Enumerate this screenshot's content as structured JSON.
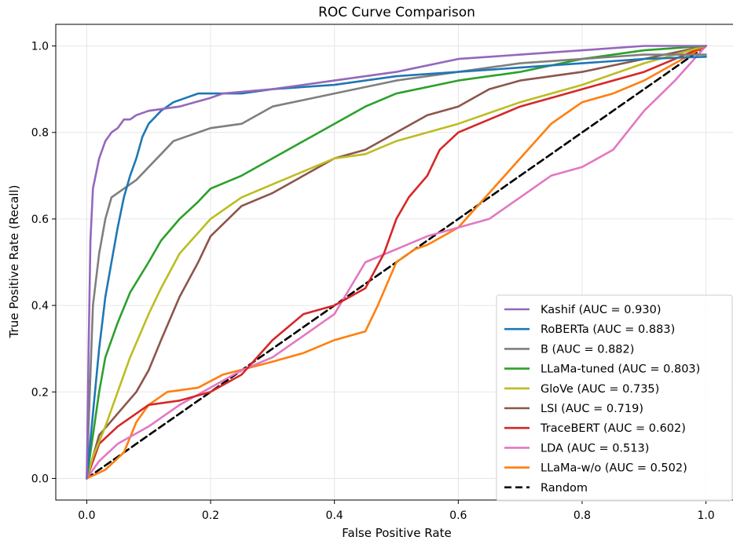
{
  "chart_data": {
    "type": "line",
    "title": "ROC Curve Comparison",
    "xlabel": "False Positive Rate",
    "ylabel": "True Positive Rate (Recall)",
    "xlim": [
      -0.05,
      1.05
    ],
    "ylim": [
      -0.05,
      1.05
    ],
    "xticks": [
      0.0,
      0.2,
      0.4,
      0.6,
      0.8,
      1.0
    ],
    "yticks": [
      0.0,
      0.2,
      0.4,
      0.6,
      0.8,
      1.0
    ],
    "xtick_labels": [
      "0.0",
      "0.2",
      "0.4",
      "0.6",
      "0.8",
      "1.0"
    ],
    "ytick_labels": [
      "0.0",
      "0.2",
      "0.4",
      "0.6",
      "0.8",
      "1.0"
    ],
    "grid": true,
    "legend_position": "lower-right",
    "series": [
      {
        "name": "Kashif (AUC = 0.930)",
        "color": "#9467bd",
        "dashed": false,
        "points": [
          [
            0,
            0
          ],
          [
            0.003,
            0.3
          ],
          [
            0.006,
            0.55
          ],
          [
            0.01,
            0.67
          ],
          [
            0.02,
            0.74
          ],
          [
            0.03,
            0.78
          ],
          [
            0.04,
            0.8
          ],
          [
            0.05,
            0.81
          ],
          [
            0.06,
            0.83
          ],
          [
            0.07,
            0.83
          ],
          [
            0.08,
            0.84
          ],
          [
            0.1,
            0.85
          ],
          [
            0.15,
            0.86
          ],
          [
            0.2,
            0.88
          ],
          [
            0.22,
            0.89
          ],
          [
            0.3,
            0.9
          ],
          [
            0.4,
            0.92
          ],
          [
            0.5,
            0.94
          ],
          [
            0.6,
            0.97
          ],
          [
            0.7,
            0.98
          ],
          [
            0.8,
            0.99
          ],
          [
            0.9,
            1.0
          ],
          [
            1.0,
            1.0
          ]
        ]
      },
      {
        "name": "RoBERTa (AUC = 0.883)",
        "color": "#1f77b4",
        "dashed": false,
        "points": [
          [
            0,
            0
          ],
          [
            0.01,
            0.15
          ],
          [
            0.02,
            0.3
          ],
          [
            0.03,
            0.42
          ],
          [
            0.04,
            0.5
          ],
          [
            0.05,
            0.58
          ],
          [
            0.06,
            0.65
          ],
          [
            0.07,
            0.7
          ],
          [
            0.08,
            0.74
          ],
          [
            0.09,
            0.79
          ],
          [
            0.1,
            0.82
          ],
          [
            0.12,
            0.85
          ],
          [
            0.14,
            0.87
          ],
          [
            0.16,
            0.88
          ],
          [
            0.18,
            0.89
          ],
          [
            0.25,
            0.89
          ],
          [
            0.3,
            0.9
          ],
          [
            0.4,
            0.91
          ],
          [
            0.5,
            0.93
          ],
          [
            0.6,
            0.94
          ],
          [
            0.7,
            0.95
          ],
          [
            0.8,
            0.96
          ],
          [
            0.9,
            0.97
          ],
          [
            1.0,
            0.975
          ]
        ]
      },
      {
        "name": "B (AUC = 0.882)",
        "color": "#7f7f7f",
        "dashed": false,
        "points": [
          [
            0,
            0
          ],
          [
            0.005,
            0.2
          ],
          [
            0.01,
            0.4
          ],
          [
            0.02,
            0.52
          ],
          [
            0.03,
            0.6
          ],
          [
            0.04,
            0.65
          ],
          [
            0.06,
            0.67
          ],
          [
            0.08,
            0.69
          ],
          [
            0.1,
            0.72
          ],
          [
            0.12,
            0.75
          ],
          [
            0.14,
            0.78
          ],
          [
            0.16,
            0.79
          ],
          [
            0.18,
            0.8
          ],
          [
            0.2,
            0.81
          ],
          [
            0.25,
            0.82
          ],
          [
            0.3,
            0.86
          ],
          [
            0.4,
            0.89
          ],
          [
            0.5,
            0.92
          ],
          [
            0.6,
            0.94
          ],
          [
            0.7,
            0.96
          ],
          [
            0.8,
            0.97
          ],
          [
            0.9,
            0.98
          ],
          [
            1.0,
            0.98
          ]
        ]
      },
      {
        "name": "LLaMa-tuned (AUC = 0.803)",
        "color": "#2ca02c",
        "dashed": false,
        "points": [
          [
            0,
            0
          ],
          [
            0.01,
            0.1
          ],
          [
            0.02,
            0.2
          ],
          [
            0.03,
            0.28
          ],
          [
            0.05,
            0.36
          ],
          [
            0.07,
            0.43
          ],
          [
            0.1,
            0.5
          ],
          [
            0.12,
            0.55
          ],
          [
            0.15,
            0.6
          ],
          [
            0.18,
            0.64
          ],
          [
            0.2,
            0.67
          ],
          [
            0.25,
            0.7
          ],
          [
            0.3,
            0.74
          ],
          [
            0.35,
            0.78
          ],
          [
            0.4,
            0.82
          ],
          [
            0.45,
            0.86
          ],
          [
            0.5,
            0.89
          ],
          [
            0.6,
            0.92
          ],
          [
            0.7,
            0.94
          ],
          [
            0.8,
            0.97
          ],
          [
            0.9,
            0.99
          ],
          [
            1.0,
            1.0
          ]
        ]
      },
      {
        "name": "GloVe (AUC = 0.735)",
        "color": "#bcbd22",
        "dashed": false,
        "points": [
          [
            0,
            0
          ],
          [
            0.01,
            0.05
          ],
          [
            0.03,
            0.12
          ],
          [
            0.05,
            0.2
          ],
          [
            0.07,
            0.28
          ],
          [
            0.1,
            0.38
          ],
          [
            0.12,
            0.44
          ],
          [
            0.15,
            0.52
          ],
          [
            0.2,
            0.6
          ],
          [
            0.25,
            0.65
          ],
          [
            0.3,
            0.68
          ],
          [
            0.35,
            0.71
          ],
          [
            0.4,
            0.74
          ],
          [
            0.45,
            0.75
          ],
          [
            0.5,
            0.78
          ],
          [
            0.55,
            0.8
          ],
          [
            0.6,
            0.82
          ],
          [
            0.7,
            0.87
          ],
          [
            0.8,
            0.91
          ],
          [
            0.9,
            0.96
          ],
          [
            1.0,
            1.0
          ]
        ]
      },
      {
        "name": "LSI (AUC = 0.719)",
        "color": "#8c564b",
        "dashed": false,
        "points": [
          [
            0,
            0
          ],
          [
            0.02,
            0.1
          ],
          [
            0.05,
            0.15
          ],
          [
            0.08,
            0.2
          ],
          [
            0.1,
            0.25
          ],
          [
            0.12,
            0.32
          ],
          [
            0.15,
            0.42
          ],
          [
            0.18,
            0.5
          ],
          [
            0.2,
            0.56
          ],
          [
            0.25,
            0.63
          ],
          [
            0.3,
            0.66
          ],
          [
            0.35,
            0.7
          ],
          [
            0.4,
            0.74
          ],
          [
            0.45,
            0.76
          ],
          [
            0.5,
            0.8
          ],
          [
            0.55,
            0.84
          ],
          [
            0.6,
            0.86
          ],
          [
            0.65,
            0.9
          ],
          [
            0.7,
            0.92
          ],
          [
            0.8,
            0.94
          ],
          [
            0.9,
            0.97
          ],
          [
            1.0,
            1.0
          ]
        ]
      },
      {
        "name": "TraceBERT (AUC = 0.602)",
        "color": "#d62728",
        "dashed": false,
        "points": [
          [
            0,
            0
          ],
          [
            0.02,
            0.08
          ],
          [
            0.05,
            0.12
          ],
          [
            0.1,
            0.17
          ],
          [
            0.15,
            0.18
          ],
          [
            0.2,
            0.2
          ],
          [
            0.25,
            0.24
          ],
          [
            0.3,
            0.32
          ],
          [
            0.35,
            0.38
          ],
          [
            0.4,
            0.4
          ],
          [
            0.45,
            0.44
          ],
          [
            0.48,
            0.52
          ],
          [
            0.5,
            0.6
          ],
          [
            0.52,
            0.65
          ],
          [
            0.55,
            0.7
          ],
          [
            0.57,
            0.76
          ],
          [
            0.6,
            0.8
          ],
          [
            0.65,
            0.83
          ],
          [
            0.7,
            0.86
          ],
          [
            0.75,
            0.88
          ],
          [
            0.8,
            0.9
          ],
          [
            0.9,
            0.94
          ],
          [
            1.0,
            1.0
          ]
        ]
      },
      {
        "name": "LDA (AUC = 0.513)",
        "color": "#e377c2",
        "dashed": false,
        "points": [
          [
            0,
            0
          ],
          [
            0.02,
            0.04
          ],
          [
            0.05,
            0.08
          ],
          [
            0.1,
            0.12
          ],
          [
            0.15,
            0.17
          ],
          [
            0.2,
            0.21
          ],
          [
            0.25,
            0.25
          ],
          [
            0.3,
            0.28
          ],
          [
            0.35,
            0.33
          ],
          [
            0.4,
            0.38
          ],
          [
            0.45,
            0.5
          ],
          [
            0.5,
            0.53
          ],
          [
            0.55,
            0.56
          ],
          [
            0.6,
            0.58
          ],
          [
            0.65,
            0.6
          ],
          [
            0.7,
            0.65
          ],
          [
            0.75,
            0.7
          ],
          [
            0.8,
            0.72
          ],
          [
            0.85,
            0.76
          ],
          [
            0.9,
            0.85
          ],
          [
            0.95,
            0.92
          ],
          [
            1.0,
            1.0
          ]
        ]
      },
      {
        "name": "LLaMa-w/o (AUC = 0.502)",
        "color": "#ff7f0e",
        "dashed": false,
        "points": [
          [
            0,
            0
          ],
          [
            0.03,
            0.02
          ],
          [
            0.06,
            0.06
          ],
          [
            0.08,
            0.13
          ],
          [
            0.1,
            0.17
          ],
          [
            0.13,
            0.2
          ],
          [
            0.18,
            0.21
          ],
          [
            0.22,
            0.24
          ],
          [
            0.3,
            0.27
          ],
          [
            0.35,
            0.29
          ],
          [
            0.4,
            0.32
          ],
          [
            0.45,
            0.34
          ],
          [
            0.47,
            0.4
          ],
          [
            0.5,
            0.5
          ],
          [
            0.53,
            0.53
          ],
          [
            0.55,
            0.54
          ],
          [
            0.6,
            0.58
          ],
          [
            0.65,
            0.66
          ],
          [
            0.7,
            0.74
          ],
          [
            0.75,
            0.82
          ],
          [
            0.8,
            0.87
          ],
          [
            0.85,
            0.89
          ],
          [
            0.9,
            0.92
          ],
          [
            1.0,
            1.0
          ]
        ]
      },
      {
        "name": "Random",
        "color": "#000000",
        "dashed": true,
        "points": [
          [
            0,
            0
          ],
          [
            1,
            1
          ]
        ]
      }
    ]
  }
}
